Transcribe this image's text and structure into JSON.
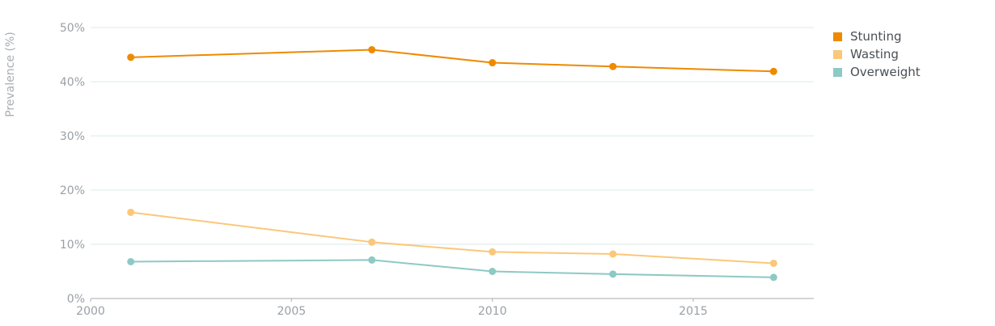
{
  "chart_data": {
    "type": "line",
    "ylabel": "Prevalence (%)",
    "xlabel": "",
    "xlim": [
      2000,
      2018
    ],
    "ylim": [
      0,
      50
    ],
    "x_ticks": [
      2000,
      2005,
      2010,
      2015
    ],
    "x_tick_labels": [
      "2000",
      "2005",
      "2010",
      "2015"
    ],
    "y_ticks": [
      0,
      10,
      20,
      30,
      40,
      50
    ],
    "y_tick_labels": [
      "0%",
      "10%",
      "20%",
      "30%",
      "40%",
      "50%"
    ],
    "grid": true,
    "legend_position": "right",
    "x": [
      2001,
      2007,
      2010,
      2013,
      2017
    ],
    "series": [
      {
        "name": "Stunting",
        "color": "#ee8a00",
        "values": [
          44.5,
          45.9,
          43.5,
          42.8,
          41.9
        ]
      },
      {
        "name": "Wasting",
        "color": "#fbc77a",
        "values": [
          15.9,
          10.4,
          8.6,
          8.2,
          6.5
        ]
      },
      {
        "name": "Overweight",
        "color": "#8ec9c4",
        "values": [
          6.8,
          7.1,
          5.0,
          4.5,
          3.9
        ]
      }
    ]
  }
}
